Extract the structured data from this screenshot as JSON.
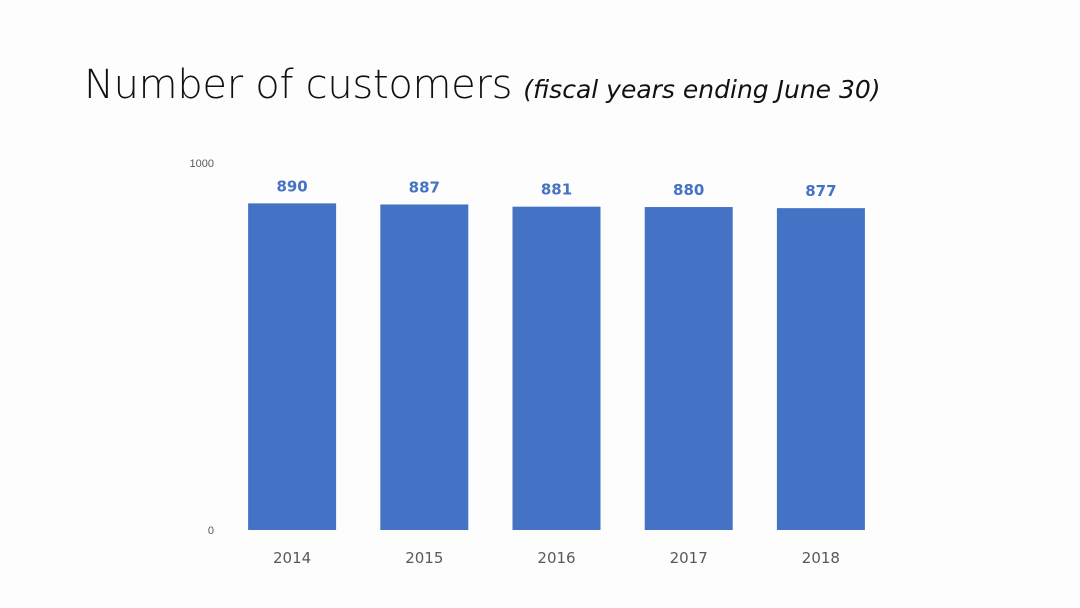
{
  "slide": {
    "title": "Number of customers",
    "subtitle": "(fiscal years ending June 30)"
  },
  "colors": {
    "bar": "#4472c4",
    "data_label": "#4472c4",
    "tick_label": "#595959",
    "background": "#fdfdfd"
  },
  "chart_data": {
    "type": "bar",
    "title": "Number of customers",
    "subtitle": "(fiscal years ending June 30)",
    "categories": [
      "2014",
      "2015",
      "2016",
      "2017",
      "2018"
    ],
    "values": [
      890,
      887,
      881,
      880,
      877
    ],
    "data_labels": [
      "890",
      "887",
      "881",
      "880",
      "877"
    ],
    "ylim": [
      0,
      1000
    ],
    "y_ticks": [
      "0",
      "1000"
    ],
    "xlabel": "",
    "ylabel": "",
    "grid": false,
    "legend": "none"
  }
}
